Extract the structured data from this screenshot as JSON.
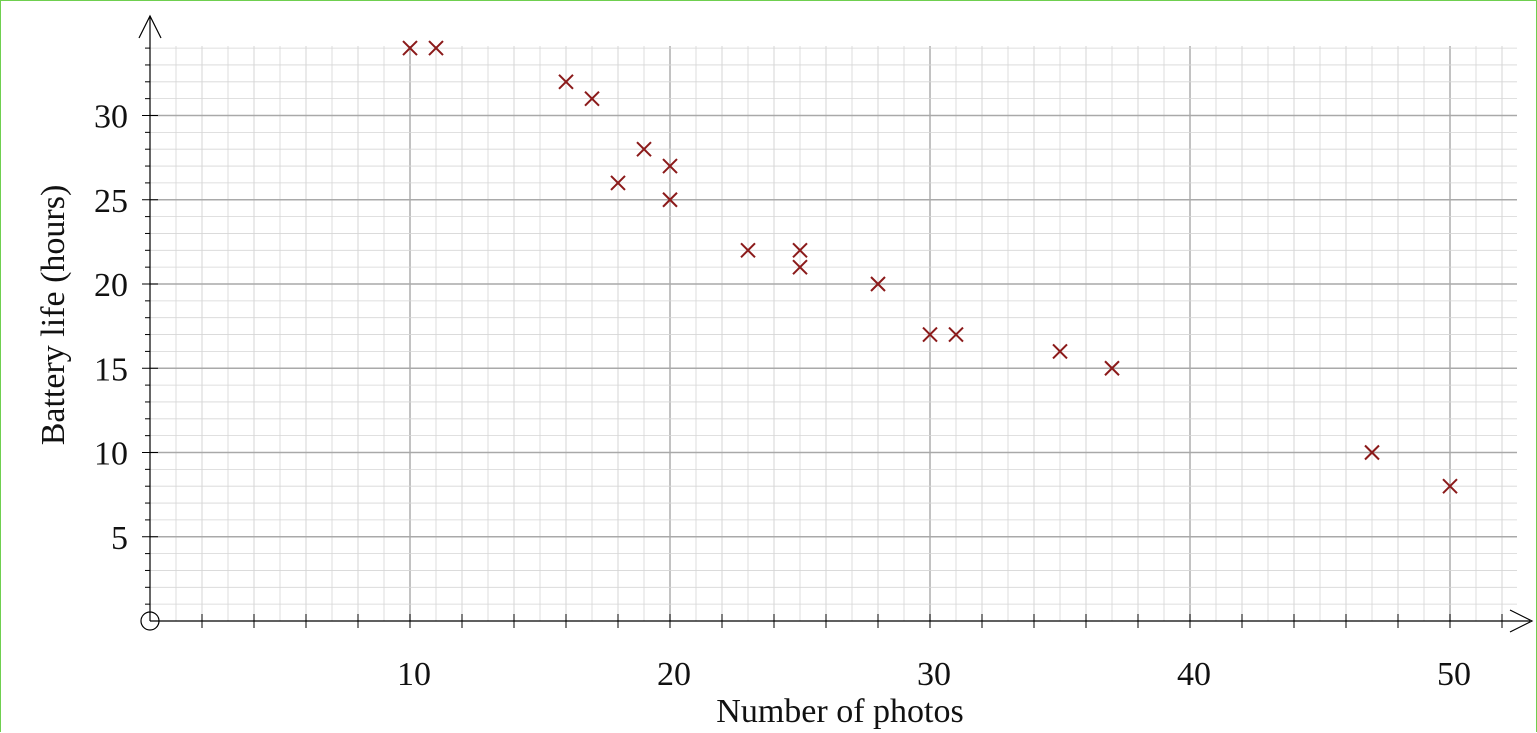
{
  "chart_data": {
    "type": "scatter",
    "xlabel": "Number of photos",
    "ylabel": "Battery life (hours)",
    "xlim": [
      0,
      53
    ],
    "ylim": [
      0,
      35
    ],
    "x_ticks": [
      "10",
      "20",
      "30",
      "40",
      "50"
    ],
    "y_ticks": [
      "5",
      "10",
      "15",
      "20",
      "25",
      "30"
    ],
    "grid": true,
    "marker": "x",
    "colors": {
      "marker": "#8b1a1a",
      "major_grid": "#a9a9a9",
      "minor_grid": "#d6d6d6",
      "frame": "#6fcf4f"
    },
    "points": [
      {
        "x": 10,
        "y": 34
      },
      {
        "x": 11,
        "y": 34
      },
      {
        "x": 16,
        "y": 32
      },
      {
        "x": 17,
        "y": 31
      },
      {
        "x": 18,
        "y": 26
      },
      {
        "x": 19,
        "y": 28
      },
      {
        "x": 20,
        "y": 27
      },
      {
        "x": 20,
        "y": 25
      },
      {
        "x": 23,
        "y": 22
      },
      {
        "x": 25,
        "y": 22
      },
      {
        "x": 25,
        "y": 21
      },
      {
        "x": 28,
        "y": 20
      },
      {
        "x": 30,
        "y": 17
      },
      {
        "x": 31,
        "y": 17
      },
      {
        "x": 35,
        "y": 16
      },
      {
        "x": 37,
        "y": 15
      },
      {
        "x": 47,
        "y": 10
      },
      {
        "x": 50,
        "y": 8
      }
    ]
  }
}
